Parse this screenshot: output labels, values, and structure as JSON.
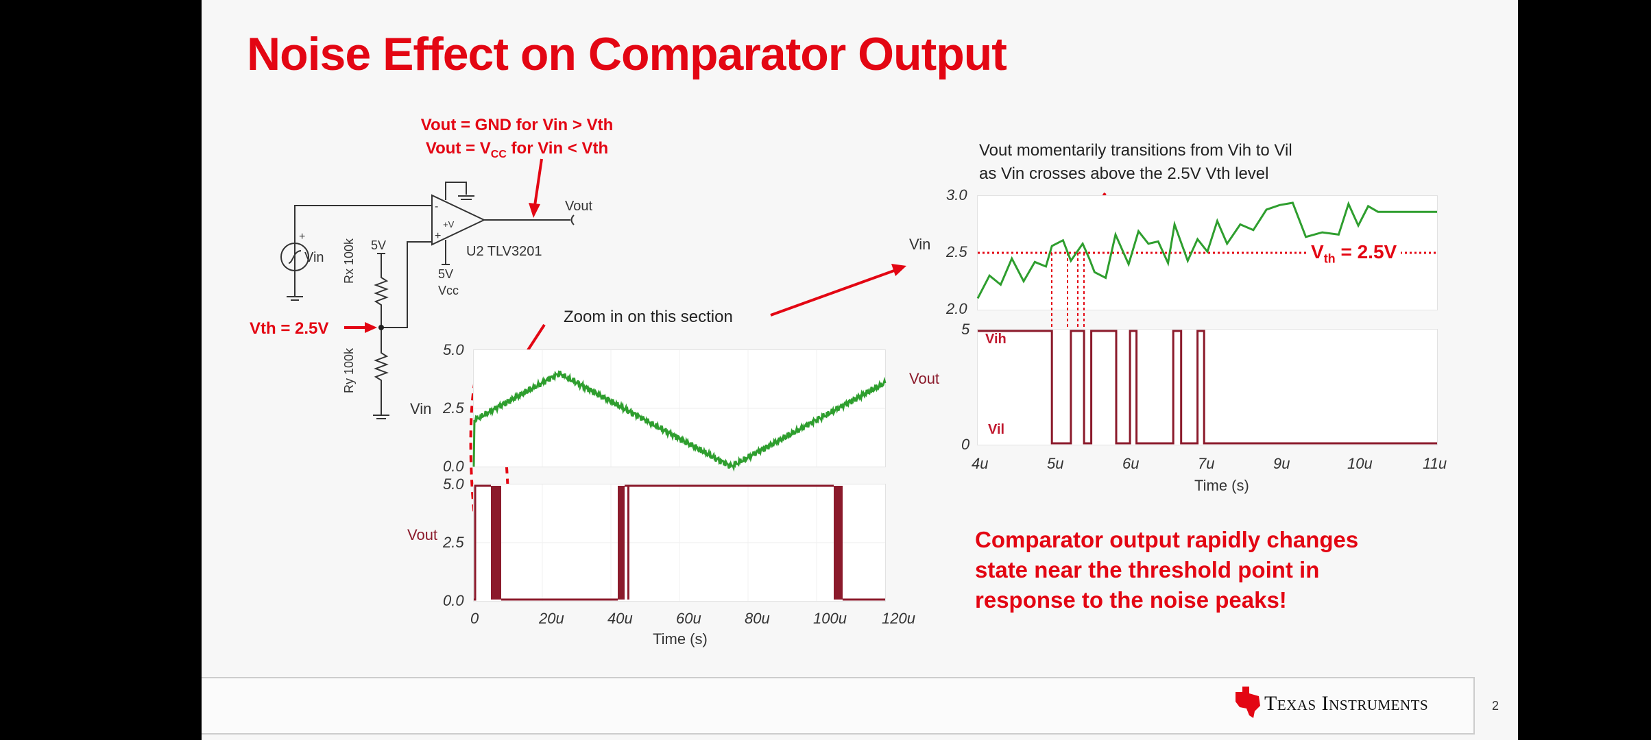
{
  "slide": {
    "title": "Noise Effect on Comparator Output",
    "page_number": "2",
    "brand": "Texas Instruments",
    "colors": {
      "accent_red": "#e30613",
      "vin_green": "#2e9e2e",
      "vout_maroon": "#8b1a2b"
    }
  },
  "schematic": {
    "equation_1": "Vout = GND for Vin > Vth",
    "equation_2_prefix": "Vout = V",
    "equation_2_sub": "CC",
    "equation_2_suffix": " for Vin < Vth",
    "vout_label": "Vout",
    "vin_label": "Vin",
    "part_label": "U2 TLV3201",
    "supply_top": "5V",
    "supply_vcc": "5V",
    "vcc_label": "Vcc",
    "rx_label": "Rx 100k",
    "ry_label": "Ry 100k",
    "vth_label": "Vth = 2.5V",
    "minus_pin": "-",
    "plus_pin": "+",
    "plus_v": "+V",
    "source_plus": "+"
  },
  "annotations": {
    "zoom_note": "Zoom in on this section",
    "transition_note_1": "Vout momentarily transitions from Vih to Vil",
    "transition_note_2": "as Vin crosses above the 2.5V Vth level",
    "vth_line_prefix": "V",
    "vth_line_sub": "th",
    "vth_line_suffix": " = 2.5V",
    "vih_label": "Vih",
    "vil_label": "Vil",
    "callout_1": "Comparator output rapidly changes",
    "callout_2": "state near the threshold point in",
    "callout_3": "response to the noise peaks!"
  },
  "chart_data": [
    {
      "type": "line",
      "title": "Vin (full sweep)",
      "ylabel": "Vin",
      "xlabel": "",
      "ylim": [
        0.0,
        5.0
      ],
      "yticks": [
        "5.0",
        "2.5",
        "0.0"
      ],
      "xlim": [
        0,
        120
      ],
      "x_unit": "u",
      "series": [
        {
          "name": "Vin",
          "color": "#2e9e2e",
          "x": [
            0,
            0.2,
            25,
            75,
            120
          ],
          "y": [
            0.0,
            2.0,
            4.0,
            0.0,
            3.6
          ],
          "noise": "±0.15V"
        }
      ]
    },
    {
      "type": "line",
      "title": "Vout (full sweep)",
      "ylabel": "Vout",
      "xlabel": "Time (s)",
      "ylim": [
        0.0,
        5.0
      ],
      "yticks": [
        "5.0",
        "2.5",
        "0.0"
      ],
      "xticks": [
        "0",
        "20u",
        "40u",
        "60u",
        "80u",
        "100u",
        "120u"
      ],
      "xlim": [
        0,
        120
      ],
      "series": [
        {
          "name": "Vout",
          "color": "#8b1a2b",
          "segments": [
            {
              "x0": 0,
              "x1": 5,
              "level": 5.0
            },
            {
              "x0": 5,
              "x1": 8,
              "level": "chatter"
            },
            {
              "x0": 8,
              "x1": 42,
              "level": 0.0
            },
            {
              "x0": 42,
              "x1": 46,
              "level": "chatter"
            },
            {
              "x0": 46,
              "x1": 105,
              "level": 5.0
            },
            {
              "x0": 105,
              "x1": 107,
              "level": "chatter"
            },
            {
              "x0": 107,
              "x1": 120,
              "level": 0.0
            }
          ]
        }
      ]
    },
    {
      "type": "line",
      "title": "Vin (zoomed)",
      "ylabel": "Vin",
      "ylim": [
        2.0,
        3.0
      ],
      "yticks": [
        "3.0",
        "2.5",
        "2.0"
      ],
      "xlim": [
        4,
        11
      ],
      "threshold": 2.5,
      "series": [
        {
          "name": "Vin",
          "color": "#2e9e2e",
          "x": [
            4.0,
            4.18,
            4.35,
            4.52,
            4.7,
            4.87,
            5.04,
            5.13,
            5.3,
            5.42,
            5.6,
            5.7,
            5.78,
            5.95,
            6.1,
            6.3,
            6.45,
            6.6,
            6.75,
            6.9,
            7.0,
            7.2,
            7.35,
            7.5,
            7.65,
            7.8,
            8.0,
            8.2,
            8.4,
            8.6,
            8.8,
            9.0,
            9.25,
            9.5,
            9.65,
            9.8,
            9.95,
            10.1,
            10.3,
            10.5,
            10.65,
            10.9,
            11.0
          ],
          "y": [
            2.1,
            2.3,
            2.22,
            2.45,
            2.25,
            2.42,
            2.38,
            2.56,
            2.61,
            2.43,
            2.58,
            2.45,
            2.33,
            2.28,
            2.66,
            2.4,
            2.69,
            2.58,
            2.6,
            2.41,
            2.75,
            2.43,
            2.62,
            2.51,
            2.78,
            2.58,
            2.75,
            2.7,
            2.88,
            2.92,
            2.94,
            2.64,
            2.68,
            2.66,
            2.93,
            2.74,
            2.91,
            2.86,
            2.86,
            2.86,
            2.86,
            2.86,
            2.86
          ]
        }
      ]
    },
    {
      "type": "line",
      "title": "Vout (zoomed)",
      "ylabel": "Vout",
      "xlabel": "Time (s)",
      "ylim": [
        0,
        5
      ],
      "yticks": [
        "5",
        "0"
      ],
      "xticks": [
        "4u",
        "5u",
        "6u",
        "7u",
        "9u",
        "10u",
        "11u"
      ],
      "xlim": [
        4,
        11
      ],
      "series": [
        {
          "name": "Vout",
          "color": "#8b1a2b",
          "x": [
            4.0,
            5.13,
            5.13,
            5.42,
            5.42,
            5.62,
            5.62,
            5.73,
            5.73,
            6.11,
            6.11,
            6.32,
            6.32,
            6.42,
            6.42,
            6.98,
            6.98,
            7.1,
            7.1,
            7.35,
            7.35,
            7.45,
            7.45,
            11.0
          ],
          "y": [
            5,
            5,
            0,
            0,
            5,
            5,
            0,
            0,
            5,
            5,
            0,
            0,
            5,
            5,
            0,
            0,
            5,
            5,
            0,
            0,
            5,
            5,
            0,
            0
          ]
        }
      ]
    }
  ]
}
